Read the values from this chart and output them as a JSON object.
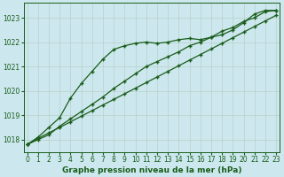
{
  "xlabel": "Graphe pression niveau de la mer (hPa)",
  "bg_color": "#cce8ee",
  "line_color": "#1a5c1a",
  "grid_color": "#b8d0c8",
  "ylim": [
    1017.5,
    1023.6
  ],
  "xlim": [
    -0.3,
    23.3
  ],
  "yticks": [
    1018,
    1019,
    1020,
    1021,
    1022,
    1023
  ],
  "xticks": [
    0,
    1,
    2,
    3,
    4,
    5,
    6,
    7,
    8,
    9,
    10,
    11,
    12,
    13,
    14,
    15,
    16,
    17,
    18,
    19,
    20,
    21,
    22,
    23
  ],
  "series_upper": [
    1017.8,
    1018.1,
    1018.5,
    1018.9,
    1019.7,
    1020.3,
    1020.8,
    1021.3,
    1021.7,
    1021.85,
    1021.95,
    1022.0,
    1021.95,
    1022.0,
    1022.1,
    1022.15,
    1022.1,
    1022.2,
    1022.3,
    1022.5,
    1022.8,
    1023.15,
    1023.3,
    1023.3
  ],
  "series_linear": [
    1017.8,
    1018.05,
    1018.28,
    1018.5,
    1018.73,
    1018.96,
    1019.19,
    1019.42,
    1019.65,
    1019.88,
    1020.11,
    1020.34,
    1020.57,
    1020.8,
    1021.03,
    1021.26,
    1021.49,
    1021.72,
    1021.95,
    1022.18,
    1022.41,
    1022.64,
    1022.87,
    1023.1
  ],
  "series_lower": [
    1017.8,
    1018.0,
    1018.2,
    1018.55,
    1018.85,
    1019.15,
    1019.45,
    1019.75,
    1020.1,
    1020.4,
    1020.7,
    1021.0,
    1021.2,
    1021.4,
    1021.6,
    1021.85,
    1022.0,
    1022.2,
    1022.45,
    1022.6,
    1022.85,
    1023.0,
    1023.25,
    1023.3
  ]
}
